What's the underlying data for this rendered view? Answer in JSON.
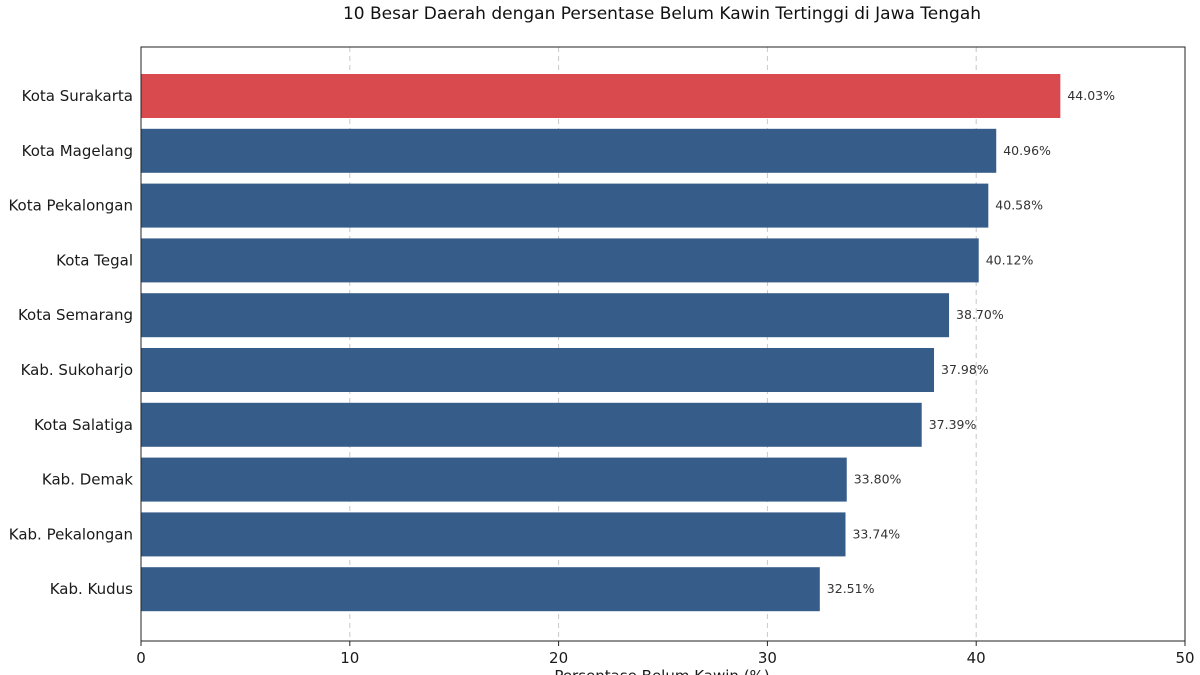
{
  "chart_data": {
    "type": "bar",
    "orientation": "horizontal",
    "title": "10 Besar Daerah dengan Persentase Belum Kawin Tertinggi di Jawa Tengah",
    "xlabel": "Persentase Belum Kawin (%)",
    "ylabel": "",
    "categories": [
      "Kota Surakarta",
      "Kota Magelang",
      "Kota Pekalongan",
      "Kota Tegal",
      "Kota Semarang",
      "Kab. Sukoharjo",
      "Kota Salatiga",
      "Kab. Demak",
      "Kab. Pekalongan",
      "Kab. Kudus"
    ],
    "values": [
      44.03,
      40.96,
      40.58,
      40.12,
      38.7,
      37.98,
      37.39,
      33.8,
      33.74,
      32.51
    ],
    "value_labels": [
      "44.03%",
      "40.96%",
      "40.58%",
      "40.12%",
      "38.70%",
      "37.98%",
      "37.39%",
      "33.80%",
      "33.74%",
      "32.51%"
    ],
    "xlim": [
      0,
      50
    ],
    "xticks": [
      0,
      10,
      20,
      30,
      40,
      50
    ],
    "xtick_labels": [
      "0",
      "10",
      "20",
      "30",
      "40",
      "50"
    ],
    "grid": "vertical dashed",
    "highlight_index": 0,
    "colors": {
      "highlight": "#d94a4f",
      "bar": "#365d8a",
      "grid": "#c8c8c8"
    }
  }
}
